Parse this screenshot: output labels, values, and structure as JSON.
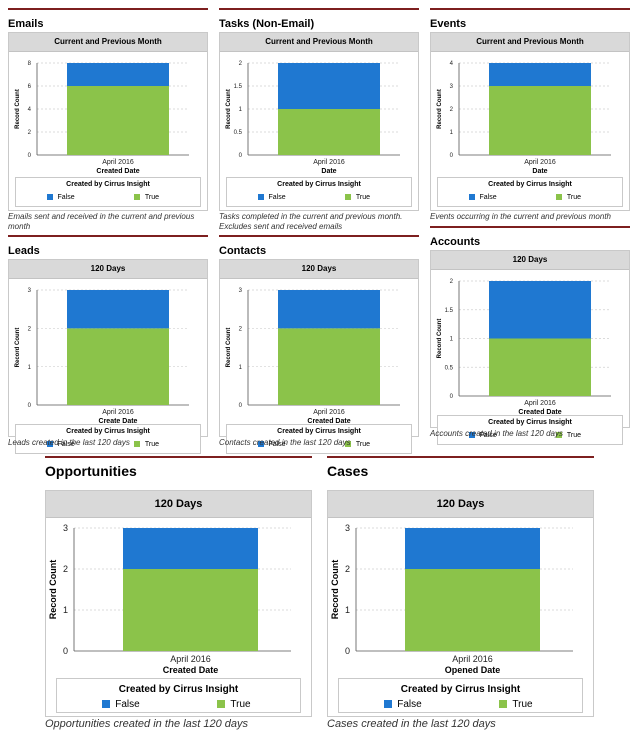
{
  "colors": {
    "false": "#1f78d1",
    "true": "#8bc34a",
    "rule": "#7d1f1f"
  },
  "panels": [
    {
      "title": "Emails",
      "header": "Current and Previous Month",
      "caption": "Emails sent and received in the current and previous month",
      "chart_data": {
        "type": "bar",
        "stacked": true,
        "categories": [
          "April 2016"
        ],
        "xlabel": "Created Date",
        "ylabel": "Record Count",
        "ylim": [
          0,
          8
        ],
        "yticks": [
          "0",
          "2",
          "4",
          "6",
          "8"
        ],
        "legend_title": "Created by Cirrus Insight",
        "series": [
          {
            "name": "False",
            "values": [
              2
            ]
          },
          {
            "name": "True",
            "values": [
              6
            ]
          }
        ]
      }
    },
    {
      "title": "Tasks (Non-Email)",
      "header": "Current and Previous Month",
      "caption": "Tasks completed in the current and previous month. Excludes sent and received emails",
      "chart_data": {
        "type": "bar",
        "stacked": true,
        "categories": [
          "April 2016"
        ],
        "xlabel": "Date",
        "ylabel": "Record Count",
        "ylim": [
          0,
          2
        ],
        "yticks": [
          "0",
          "0.5",
          "1",
          "1.5",
          "2"
        ],
        "legend_title": "Created by Cirrus Insight",
        "series": [
          {
            "name": "False",
            "values": [
              1
            ]
          },
          {
            "name": "True",
            "values": [
              1
            ]
          }
        ]
      }
    },
    {
      "title": "Events",
      "header": "Current and Previous Month",
      "caption": "Events occurring in the current and previous month",
      "chart_data": {
        "type": "bar",
        "stacked": true,
        "categories": [
          "April 2016"
        ],
        "xlabel": "Date",
        "ylabel": "Record Count",
        "ylim": [
          0,
          4
        ],
        "yticks": [
          "0",
          "1",
          "2",
          "3",
          "4"
        ],
        "legend_title": "Created by Cirrus Insight",
        "series": [
          {
            "name": "False",
            "values": [
              1
            ]
          },
          {
            "name": "True",
            "values": [
              3
            ]
          }
        ]
      }
    },
    {
      "title": "Leads",
      "header": "120 Days",
      "caption": "Leads created in the last 120 days",
      "chart_data": {
        "type": "bar",
        "stacked": true,
        "categories": [
          "April 2016"
        ],
        "xlabel": "Create Date",
        "ylabel": "Record Count",
        "ylim": [
          0,
          3
        ],
        "yticks": [
          "0",
          "1",
          "2",
          "3"
        ],
        "legend_title": "Created by Cirrus Insight",
        "series": [
          {
            "name": "False",
            "values": [
              1
            ]
          },
          {
            "name": "True",
            "values": [
              2
            ]
          }
        ]
      }
    },
    {
      "title": "Contacts",
      "header": "120 Days",
      "caption": "Contacts created in the last 120 days",
      "chart_data": {
        "type": "bar",
        "stacked": true,
        "categories": [
          "April 2016"
        ],
        "xlabel": "Created Date",
        "ylabel": "Record Count",
        "ylim": [
          0,
          3
        ],
        "yticks": [
          "0",
          "1",
          "2",
          "3"
        ],
        "legend_title": "Created by Cirrus Insight",
        "series": [
          {
            "name": "False",
            "values": [
              1
            ]
          },
          {
            "name": "True",
            "values": [
              2
            ]
          }
        ]
      }
    },
    {
      "title": "Accounts",
      "header": "120 Days",
      "caption": "Accounts created in the last 120 days",
      "chart_data": {
        "type": "bar",
        "stacked": true,
        "categories": [
          "April 2016"
        ],
        "xlabel": "Created Date",
        "ylabel": "Record Count",
        "ylim": [
          0,
          2
        ],
        "yticks": [
          "0",
          "0.5",
          "1",
          "1.5",
          "2"
        ],
        "legend_title": "Created by Cirrus Insight",
        "series": [
          {
            "name": "False",
            "values": [
              1
            ]
          },
          {
            "name": "True",
            "values": [
              1
            ]
          }
        ]
      }
    },
    {
      "title": "Opportunities",
      "header": "120 Days",
      "caption": "Opportunities created in the last 120 days",
      "chart_data": {
        "type": "bar",
        "stacked": true,
        "categories": [
          "April 2016"
        ],
        "xlabel": "Created Date",
        "ylabel": "Record Count",
        "ylim": [
          0,
          3
        ],
        "yticks": [
          "0",
          "1",
          "2",
          "3"
        ],
        "legend_title": "Created by Cirrus Insight",
        "series": [
          {
            "name": "False",
            "values": [
              1
            ]
          },
          {
            "name": "True",
            "values": [
              2
            ]
          }
        ]
      }
    },
    {
      "title": "Cases",
      "header": "120 Days",
      "caption": "Cases created in the last 120 days",
      "chart_data": {
        "type": "bar",
        "stacked": true,
        "categories": [
          "April 2016"
        ],
        "xlabel": "Opened Date",
        "ylabel": "Record Count",
        "ylim": [
          0,
          3
        ],
        "yticks": [
          "0",
          "1",
          "2",
          "3"
        ],
        "legend_title": "Created by Cirrus Insight",
        "series": [
          {
            "name": "False",
            "values": [
              1
            ]
          },
          {
            "name": "True",
            "values": [
              2
            ]
          }
        ]
      }
    }
  ]
}
